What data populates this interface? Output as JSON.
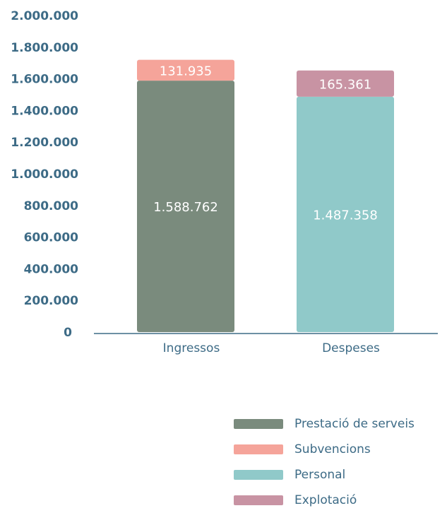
{
  "chart_data": {
    "type": "bar",
    "stacked": true,
    "categories": [
      "Ingressos",
      "Despeses"
    ],
    "ylim": [
      0,
      2000000
    ],
    "yticks": [
      "0",
      "200.000",
      "400.000",
      "600.000",
      "800.000",
      "1.000.000",
      "1.200.000",
      "1.400.000",
      "1.600.000",
      "1.800.000",
      "2.000.000"
    ],
    "ytick_values": [
      0,
      200000,
      400000,
      600000,
      800000,
      1000000,
      1200000,
      1400000,
      1600000,
      1800000,
      2000000
    ],
    "series": [
      {
        "name": "Prestació de serveis",
        "color": "#7a8b7d",
        "values": [
          1588762,
          null
        ],
        "labels": [
          "1.588.762",
          ""
        ]
      },
      {
        "name": "Subvencions",
        "color": "#f5a49a",
        "values": [
          131935,
          null
        ],
        "labels": [
          "131.935",
          ""
        ]
      },
      {
        "name": "Personal",
        "color": "#90c9c9",
        "values": [
          null,
          1487358
        ],
        "labels": [
          "",
          "1.487.358"
        ]
      },
      {
        "name": "Explotació",
        "color": "#c893a3",
        "values": [
          null,
          165361
        ],
        "labels": [
          "",
          "165.361"
        ]
      }
    ],
    "legend_position": "bottom-right",
    "grid": false
  },
  "colors": {
    "axis_text": "#3d6b86",
    "axis_line": "#3d6b86",
    "label_text": "#ffffff"
  }
}
